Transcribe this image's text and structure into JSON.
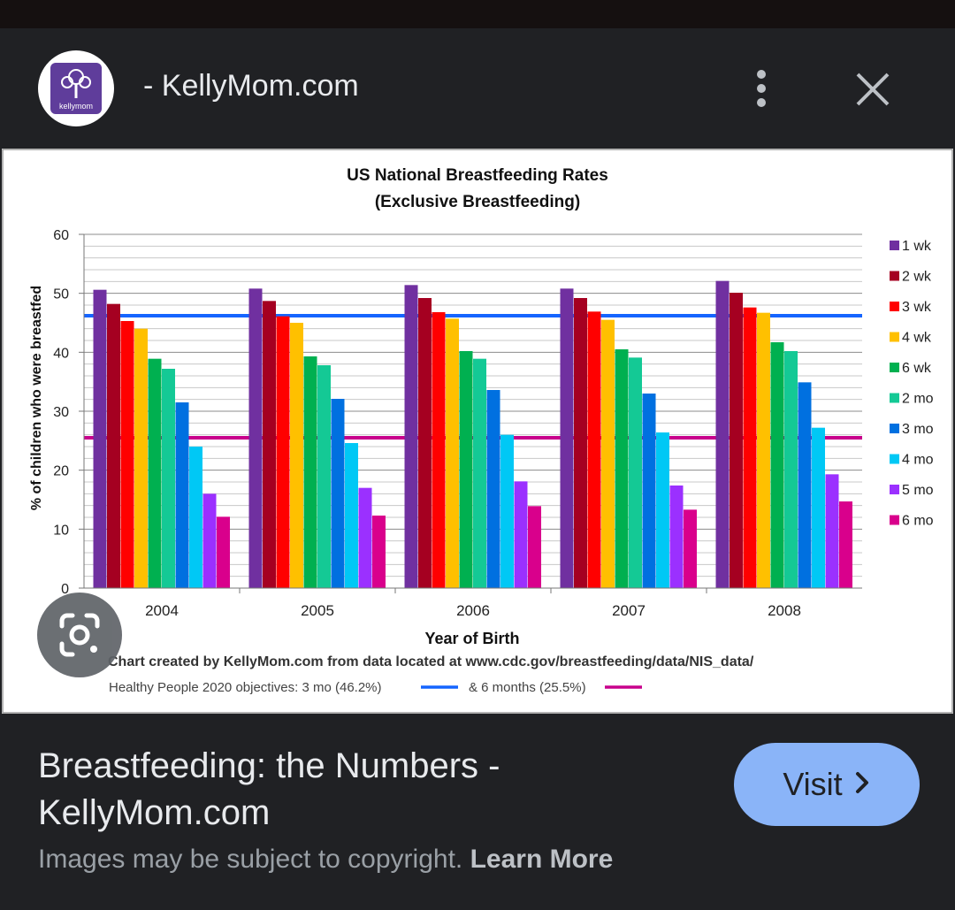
{
  "header": {
    "site_title": "- KellyMom.com",
    "logo_text": "kellymom",
    "menu_icon": "more-vert-icon",
    "close_icon": "close-icon"
  },
  "chart_data": {
    "type": "bar",
    "title": "US National Breastfeeding Rates",
    "subtitle": "(Exclusive Breastfeeding)",
    "xlabel": "Year of Birth",
    "ylabel": "% of children who were breastfed",
    "ylim": [
      0,
      60
    ],
    "yticks": [
      0,
      10,
      20,
      30,
      40,
      50,
      60
    ],
    "grid": true,
    "legend_position": "right",
    "categories": [
      "2004",
      "2005",
      "2006",
      "2007",
      "2008"
    ],
    "series": [
      {
        "name": "1 wk",
        "color": "#7030a0",
        "values": [
          50.6,
          50.8,
          51.4,
          50.8,
          52.1
        ]
      },
      {
        "name": "2 wk",
        "color": "#a50021",
        "values": [
          48.2,
          48.7,
          49.2,
          49.2,
          50.1
        ]
      },
      {
        "name": "3 wk",
        "color": "#ff0000",
        "values": [
          45.3,
          46.1,
          46.8,
          46.9,
          47.6
        ]
      },
      {
        "name": "4 wk",
        "color": "#ffc000",
        "values": [
          44.0,
          45.0,
          45.7,
          45.5,
          46.7
        ]
      },
      {
        "name": "6 wk",
        "color": "#00b050",
        "values": [
          38.9,
          39.3,
          40.2,
          40.5,
          41.7
        ]
      },
      {
        "name": "2 mo",
        "color": "#14c995",
        "values": [
          37.2,
          37.8,
          38.9,
          39.1,
          40.2
        ]
      },
      {
        "name": "3 mo",
        "color": "#0070e0",
        "values": [
          31.5,
          32.1,
          33.6,
          33.0,
          34.9
        ]
      },
      {
        "name": "4 mo",
        "color": "#00c8f5",
        "values": [
          24.0,
          24.6,
          26.0,
          26.4,
          27.2
        ]
      },
      {
        "name": "5 mo",
        "color": "#9b30ff",
        "values": [
          16.0,
          17.0,
          18.1,
          17.4,
          19.3
        ]
      },
      {
        "name": "6 mo",
        "color": "#d9008c",
        "values": [
          12.1,
          12.3,
          13.9,
          13.3,
          14.7
        ]
      }
    ],
    "reference_lines": [
      {
        "label": "3 mo (46.2%)",
        "value": 46.2,
        "color": "#1565ff"
      },
      {
        "label": "& 6 months (25.5%)",
        "value": 25.5,
        "color": "#c8008c"
      }
    ],
    "credit": "Chart created by KellyMom.com from data located at www.cdc.gov/breastfeeding/data/NIS_data/",
    "objectives_prefix": "Healthy People 2020 objectives: 3 mo (46.2%)",
    "objectives_second": "& 6 months (25.5%)"
  },
  "lens": {
    "icon": "google-lens-icon"
  },
  "result": {
    "title_line1": "Breastfeeding: the Numbers -",
    "title_line2": "KellyMom.com",
    "visit_label": "Visit",
    "copyright_text": "Images may be subject to copyright.",
    "learn_more": "Learn More"
  }
}
